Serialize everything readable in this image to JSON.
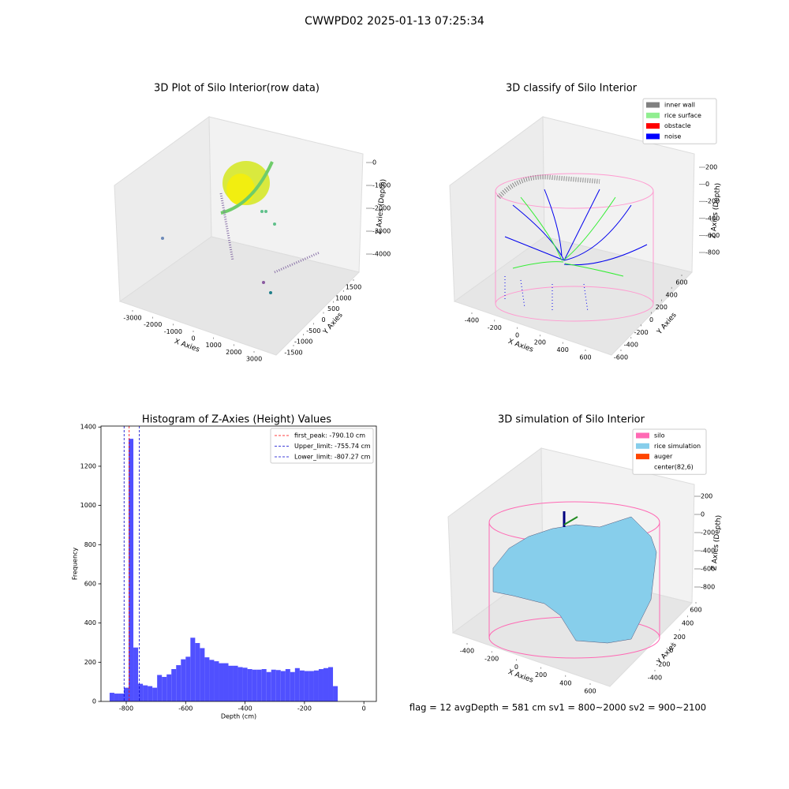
{
  "title": "CWWPD02 2025-01-13 07:25:34",
  "footer": "flag = 12  avgDepth = 581 cm  sv1 = 800~2000  sv2 = 900~2100",
  "chart_data": [
    {
      "type": "scatter3d",
      "title": "3D Plot of Silo Interior(row data)",
      "xlabel": "X Axies",
      "ylabel": "Y Axies",
      "zlabel": "Z Axies (Depth)",
      "xticks": [
        -3000,
        -2000,
        -1000,
        0,
        1000,
        2000,
        3000
      ],
      "yticks": [
        -1500,
        -1000,
        -500,
        0,
        500,
        1000,
        1500
      ],
      "zticks": [
        0,
        -1000,
        -2000,
        -3000,
        -4000
      ]
    },
    {
      "type": "scatter3d",
      "title": "3D classify of Silo Interior",
      "xlabel": "X Axies",
      "ylabel": "Y Axies",
      "zlabel": "Z Axies (Depth)",
      "xticks": [
        -400,
        -200,
        0,
        200,
        400,
        600
      ],
      "yticks": [
        -600,
        -400,
        -200,
        0,
        200,
        400,
        600
      ],
      "zticks": [
        200,
        0,
        -200,
        -400,
        -600,
        -800
      ],
      "legend": [
        {
          "name": "inner wall",
          "color": "#808080"
        },
        {
          "name": "rice surface",
          "color": "#90ee90"
        },
        {
          "name": "obstacle",
          "color": "#ff0000"
        },
        {
          "name": "noise",
          "color": "#0000ff"
        }
      ]
    },
    {
      "type": "histogram",
      "title": "Histogram of Z-Axies (Height) Values",
      "xlabel": "Depth (cm)",
      "ylabel": "Frequency",
      "color": "#5050ff",
      "bins": [
        -856,
        -840,
        -824,
        -808,
        -792,
        -776,
        -760,
        -744,
        -728,
        -712,
        -696,
        -680,
        -664,
        -648,
        -632,
        -616,
        -600,
        -584,
        -568,
        -552,
        -536,
        -520,
        -504,
        -488,
        -472,
        -456,
        -440,
        -424,
        -408,
        -392,
        -376,
        -360,
        -344,
        -328,
        -312,
        -296,
        -280,
        -264,
        -248,
        -232,
        -216,
        -200,
        -184,
        -168,
        -152,
        -136,
        -120,
        -104,
        -88
      ],
      "values": [
        44,
        40,
        40,
        70,
        1340,
        275,
        90,
        82,
        78,
        70,
        135,
        125,
        138,
        165,
        185,
        215,
        228,
        325,
        298,
        272,
        225,
        212,
        205,
        195,
        195,
        182,
        182,
        175,
        172,
        165,
        162,
        162,
        165,
        150,
        162,
        160,
        155,
        165,
        150,
        170,
        158,
        155,
        155,
        158,
        165,
        170,
        175,
        78
      ],
      "xlim": [
        -885,
        42
      ],
      "ylim": [
        0,
        1405
      ],
      "xticks": [
        -800,
        -600,
        -400,
        -200,
        0
      ],
      "yticks": [
        0,
        200,
        400,
        600,
        800,
        1000,
        1200,
        1400
      ],
      "legend_loc": "upper right",
      "vlines": [
        {
          "label": "first_peak: -790.10 cm",
          "value": -790.1,
          "color": "#ff0000"
        },
        {
          "label": "Upper_limit: -755.74 cm",
          "value": -755.74,
          "color": "#0000cc"
        },
        {
          "label": "Lower_limit: -807.27 cm",
          "value": -807.27,
          "color": "#0000cc"
        }
      ]
    },
    {
      "type": "surface3d",
      "title": "3D simulation of Silo Interior",
      "xlabel": "X Axies",
      "ylabel": "Y Axies",
      "zlabel": "Z Axies (Depth)",
      "xticks": [
        -400,
        -200,
        0,
        200,
        400,
        600
      ],
      "yticks": [
        -400,
        -200,
        0,
        200,
        400,
        600
      ],
      "zticks": [
        200,
        0,
        -200,
        -400,
        -600,
        -800
      ],
      "legend": [
        {
          "name": "silo",
          "color": "#ff69b4"
        },
        {
          "name": "rice simulation",
          "color": "#87ceeb"
        },
        {
          "name": "auger",
          "color": "#ff4500"
        },
        {
          "name": "center(82,6)",
          "color": "#ffffff"
        }
      ]
    }
  ]
}
